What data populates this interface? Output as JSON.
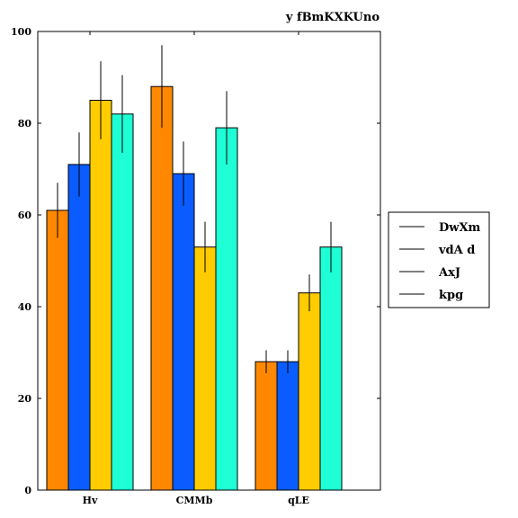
{
  "chart_data": {
    "type": "bar",
    "title": "y fBmKXKUno",
    "xlabel": "",
    "ylabel": "",
    "categories": [
      "Hv",
      "CMMb",
      "qLE"
    ],
    "ylim": [
      0,
      100
    ],
    "yticks": [
      0,
      20,
      40,
      60,
      80,
      100
    ],
    "grid": false,
    "legend_position": "right",
    "series": [
      {
        "name": "DwXm",
        "color": "#ff8800",
        "values": [
          61,
          88,
          28
        ],
        "errors": [
          6,
          9,
          2.5
        ]
      },
      {
        "name": "vdA d",
        "color": "#0a5cff",
        "values": [
          71,
          69,
          28
        ],
        "errors": [
          7,
          7,
          2.5
        ]
      },
      {
        "name": "AxJ",
        "color": "#ffcc00",
        "values": [
          85,
          53,
          43
        ],
        "errors": [
          8.5,
          5.5,
          4
        ]
      },
      {
        "name": "kpg",
        "color": "#1effd6",
        "values": [
          82,
          79,
          53
        ],
        "errors": [
          8.5,
          8,
          5.5
        ]
      }
    ]
  }
}
